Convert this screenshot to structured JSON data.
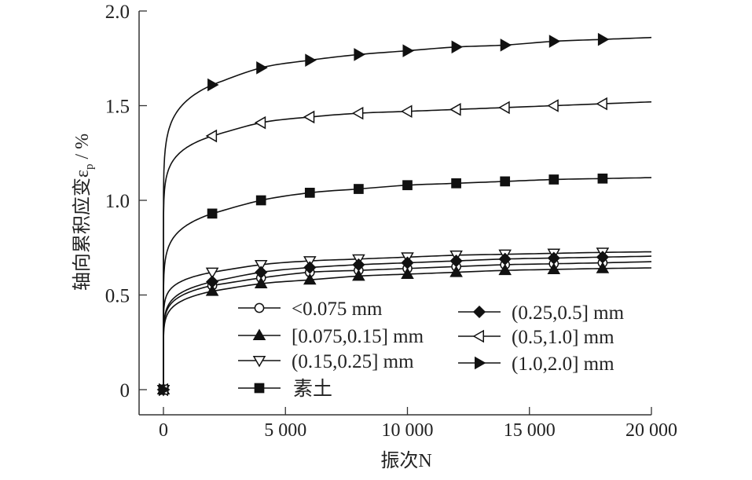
{
  "chart_data": {
    "type": "line",
    "title": "",
    "xlabel": "振次N",
    "ylabel": "轴向累积应变ε",
    "ylabel_sub": "p",
    "ylabel_unit": " / %",
    "xlim": [
      -1000,
      20000
    ],
    "ylim": [
      -0.13,
      2.0
    ],
    "xticks": [
      0,
      5000,
      10000,
      15000,
      20000
    ],
    "xtick_labels": [
      "0",
      "5 000",
      "10 000",
      "15 000",
      "20 000"
    ],
    "yticks": [
      0,
      0.5,
      1.0,
      1.5,
      2.0
    ],
    "ytick_labels": [
      "0",
      "0.5",
      "1.0",
      "1.5",
      "2.0"
    ],
    "grid": false,
    "legend_position": "lower-center",
    "x": [
      0,
      2000,
      4000,
      6000,
      8000,
      10000,
      12000,
      14000,
      16000,
      18000,
      20000
    ],
    "series": [
      {
        "name": "<0.075 mm",
        "marker": "circle-open",
        "values": [
          0,
          0.55,
          0.59,
          0.62,
          0.63,
          0.64,
          0.65,
          0.66,
          0.665,
          0.67,
          0.676
        ]
      },
      {
        "name": "[0.075,0.15] mm",
        "marker": "triangle-up-filled",
        "values": [
          0,
          0.52,
          0.56,
          0.58,
          0.6,
          0.61,
          0.62,
          0.63,
          0.635,
          0.64,
          0.643
        ]
      },
      {
        "name": "(0.15,0.25] mm",
        "marker": "triangle-down-open",
        "values": [
          0,
          0.62,
          0.66,
          0.68,
          0.69,
          0.7,
          0.71,
          0.715,
          0.72,
          0.725,
          0.728
        ]
      },
      {
        "name": "素土",
        "marker": "square-filled",
        "values": [
          0,
          0.93,
          1.0,
          1.04,
          1.06,
          1.08,
          1.09,
          1.1,
          1.11,
          1.115,
          1.12
        ]
      },
      {
        "name": "(0.25,0.5] mm",
        "marker": "diamond-filled",
        "values": [
          0,
          0.57,
          0.62,
          0.645,
          0.66,
          0.67,
          0.68,
          0.69,
          0.695,
          0.7,
          0.705
        ]
      },
      {
        "name": "(0.5,1.0] mm",
        "marker": "triangle-left-open",
        "values": [
          0,
          1.34,
          1.41,
          1.44,
          1.46,
          1.47,
          1.48,
          1.49,
          1.5,
          1.51,
          1.52
        ]
      },
      {
        "name": "(1.0,2.0] mm",
        "marker": "triangle-right-filled",
        "values": [
          0,
          1.61,
          1.7,
          1.74,
          1.77,
          1.79,
          1.81,
          1.82,
          1.84,
          1.85,
          1.86
        ]
      }
    ]
  }
}
